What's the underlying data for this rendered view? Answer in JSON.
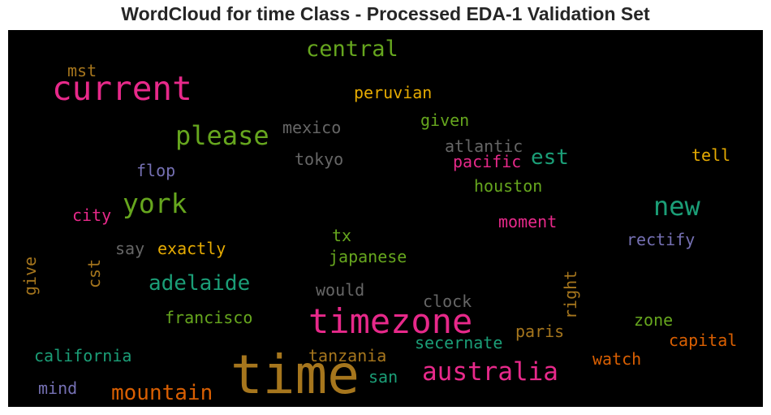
{
  "title": "WordCloud for time Class - Processed EDA-1 Validation Set",
  "palette": {
    "background": "#000000",
    "pink": "#e7298a",
    "green": "#66a61e",
    "teal": "#1b9e77",
    "gold": "#e6ab02",
    "orange": "#d95f02",
    "purple": "#7570b3",
    "brown": "#a6761d",
    "gray": "#666666"
  },
  "words": [
    {
      "text": "time",
      "color": "#a6761d"
    },
    {
      "text": "timezone",
      "color": "#e7298a"
    },
    {
      "text": "current",
      "color": "#e7298a"
    },
    {
      "text": "australia",
      "color": "#e7298a"
    },
    {
      "text": "please",
      "color": "#66a61e"
    },
    {
      "text": "york",
      "color": "#66a61e"
    },
    {
      "text": "new",
      "color": "#1b9e77"
    },
    {
      "text": "central",
      "color": "#66a61e"
    },
    {
      "text": "adelaide",
      "color": "#1b9e77"
    },
    {
      "text": "mountain",
      "color": "#d95f02"
    },
    {
      "text": "est",
      "color": "#1b9e77"
    },
    {
      "text": "mexico",
      "color": "#666666"
    },
    {
      "text": "peruvian",
      "color": "#e6ab02"
    },
    {
      "text": "given",
      "color": "#66a61e"
    },
    {
      "text": "atlantic",
      "color": "#666666"
    },
    {
      "text": "pacific",
      "color": "#e7298a"
    },
    {
      "text": "tokyo",
      "color": "#666666"
    },
    {
      "text": "houston",
      "color": "#66a61e"
    },
    {
      "text": "tell",
      "color": "#e6ab02"
    },
    {
      "text": "flop",
      "color": "#7570b3"
    },
    {
      "text": "mst",
      "color": "#a6761d"
    },
    {
      "text": "city",
      "color": "#e7298a"
    },
    {
      "text": "moment",
      "color": "#e7298a"
    },
    {
      "text": "rectify",
      "color": "#7570b3"
    },
    {
      "text": "say",
      "color": "#666666"
    },
    {
      "text": "exactly",
      "color": "#e6ab02"
    },
    {
      "text": "tx",
      "color": "#66a61e"
    },
    {
      "text": "japanese",
      "color": "#66a61e"
    },
    {
      "text": "give",
      "color": "#a6761d"
    },
    {
      "text": "cst",
      "color": "#a6761d"
    },
    {
      "text": "would",
      "color": "#666666"
    },
    {
      "text": "right",
      "color": "#a6761d"
    },
    {
      "text": "clock",
      "color": "#666666"
    },
    {
      "text": "francisco",
      "color": "#66a61e"
    },
    {
      "text": "zone",
      "color": "#66a61e"
    },
    {
      "text": "paris",
      "color": "#a6761d"
    },
    {
      "text": "capital",
      "color": "#d95f02"
    },
    {
      "text": "secernate",
      "color": "#1b9e77"
    },
    {
      "text": "california",
      "color": "#1b9e77"
    },
    {
      "text": "tanzania",
      "color": "#a6761d"
    },
    {
      "text": "watch",
      "color": "#d95f02"
    },
    {
      "text": "san",
      "color": "#1b9e77"
    },
    {
      "text": "mind",
      "color": "#7570b3"
    }
  ]
}
